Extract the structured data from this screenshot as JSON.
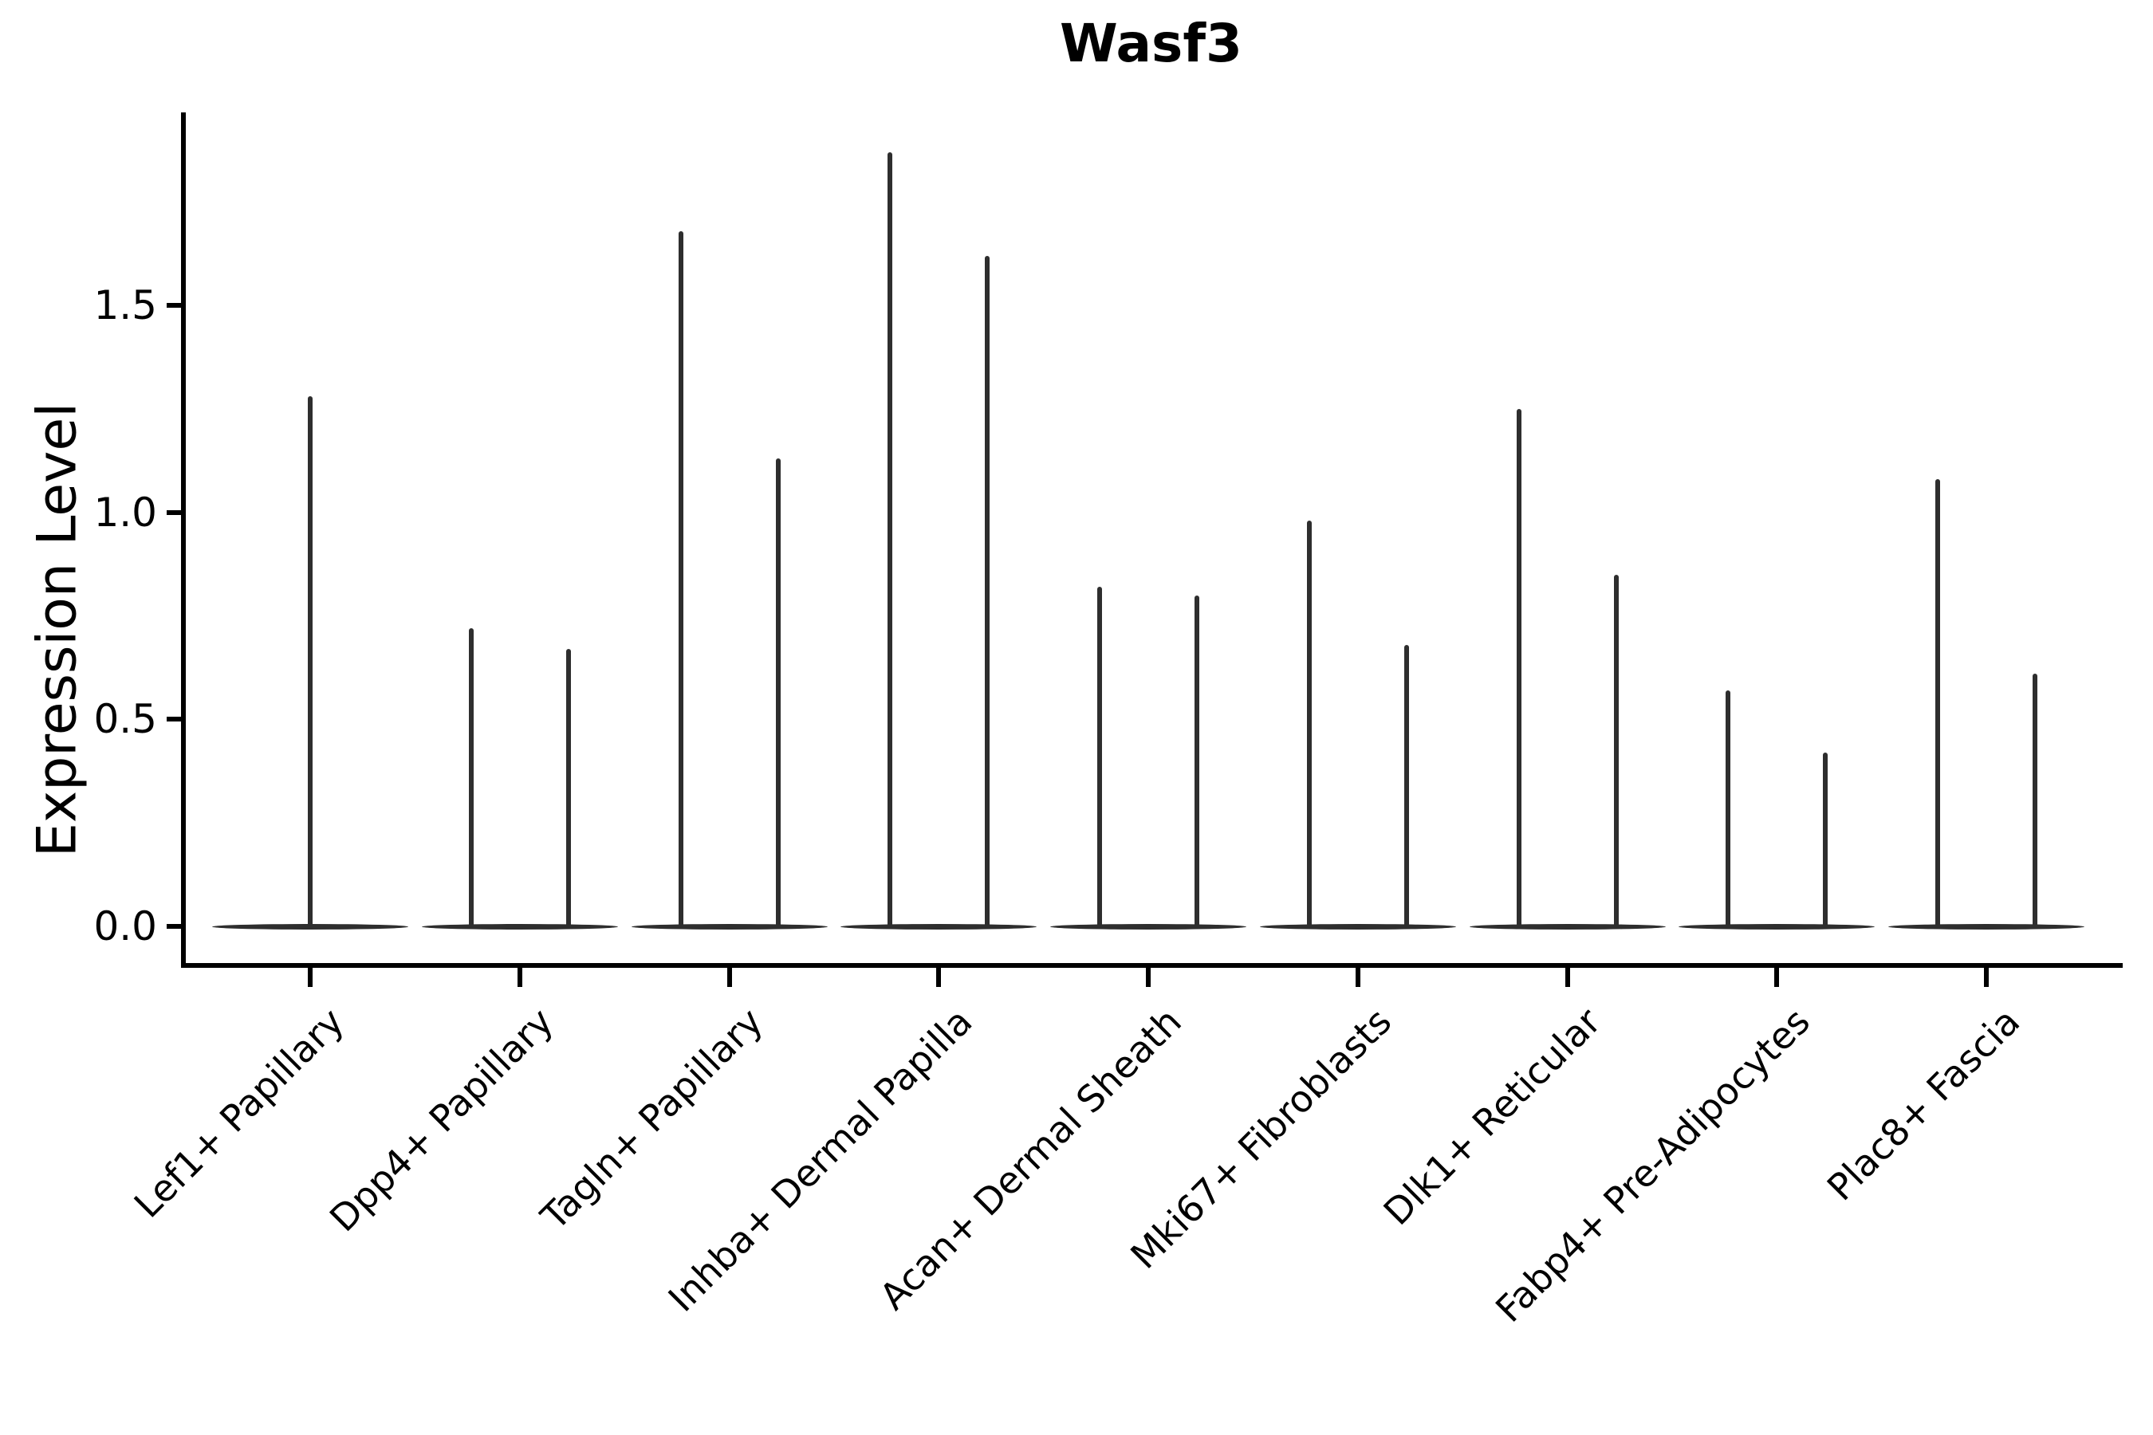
{
  "figure": {
    "title": "Wasf3"
  },
  "chart_data": {
    "type": "violin",
    "title": "Wasf3",
    "xlabel": "",
    "ylabel": "Expression Level",
    "ytick_labels": [
      "0.0",
      "0.5",
      "1.0",
      "1.5"
    ],
    "ytick_values": [
      0.0,
      0.5,
      1.0,
      1.5
    ],
    "ylim": [
      -0.09,
      1.97
    ],
    "grid": false,
    "legend": "none",
    "categories": [
      "Lef1+ Papillary",
      "Dpp4+ Papillary",
      "Tagln+ Papillary",
      "Inhba+ Dermal Papilla",
      "Acan+ Dermal Sheath",
      "Mki67+ Fibroblasts",
      "Dlk1+ Reticular",
      "Fabp4+ Pre-Adipocytes",
      "Plac8+ Fascia"
    ],
    "violins_per_category": [
      1,
      2,
      2,
      2,
      2,
      2,
      2,
      2,
      2
    ],
    "max_expression": [
      [
        1.28
      ],
      [
        0.72,
        0.67
      ],
      [
        1.68,
        1.13
      ],
      [
        1.87,
        1.62
      ],
      [
        0.82,
        0.8
      ],
      [
        0.98,
        0.68
      ],
      [
        1.25,
        0.85
      ],
      [
        0.57,
        0.42
      ],
      [
        1.08,
        0.61
      ]
    ],
    "shape_note": "Each violin is collapsed flat at expression 0 with a single thin density spike rising to its maximum value",
    "violin_color": "#2e2e2e",
    "axis_color": "#000000",
    "background_color": "#ffffff"
  }
}
